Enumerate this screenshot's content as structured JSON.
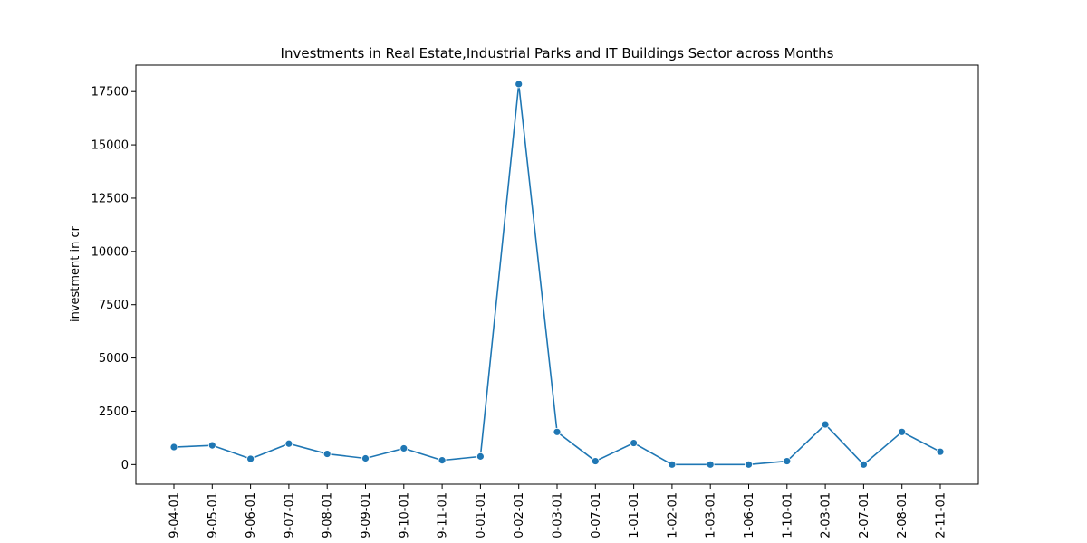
{
  "chart_data": {
    "type": "line",
    "title": "Investments in Real Estate,Industrial Parks and IT Buildings Sector across Months",
    "xlabel": "",
    "ylabel": "investment in cr",
    "categories": [
      "9-04-01",
      "9-05-01",
      "9-06-01",
      "9-07-01",
      "9-08-01",
      "9-09-01",
      "9-10-01",
      "9-11-01",
      "0-01-01",
      "0-02-01",
      "0-03-01",
      "0-07-01",
      "1-01-01",
      "1-02-01",
      "1-03-01",
      "1-06-01",
      "1-10-01",
      "2-03-01",
      "2-07-01",
      "2-08-01",
      "2-11-01"
    ],
    "values": [
      820,
      900,
      270,
      980,
      500,
      290,
      760,
      200,
      380,
      17850,
      1530,
      160,
      1010,
      0,
      0,
      0,
      160,
      1880,
      0,
      1530,
      600
    ],
    "yticks": [
      0,
      2500,
      5000,
      7500,
      10000,
      12500,
      15000,
      17500
    ],
    "ytick_labels": [
      "0",
      "2500",
      "5000",
      "7500",
      "10000",
      "12500",
      "15000",
      "17500"
    ],
    "ylim": [
      -920,
      18740
    ],
    "grid": false,
    "line_color": "#1f77b4",
    "marker": "circle"
  }
}
